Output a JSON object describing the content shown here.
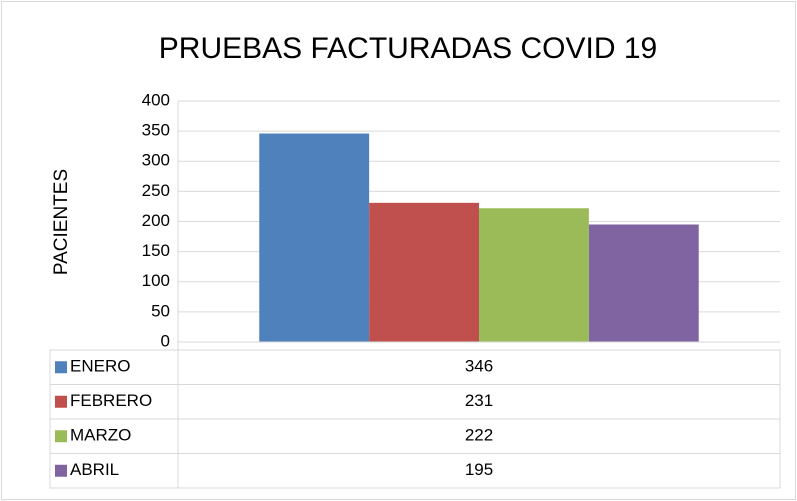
{
  "chart_data": {
    "type": "bar",
    "title": "PRUEBAS FACTURADAS COVID 19",
    "y_label": "PACIENTES",
    "categories": [
      null
    ],
    "series": [
      {
        "name": "ENERO",
        "color": "#4f81bd",
        "values": [
          346
        ]
      },
      {
        "name": "FEBRERO",
        "color": "#c0504d",
        "values": [
          231
        ]
      },
      {
        "name": "MARZO",
        "color": "#9bbb59",
        "values": [
          222
        ]
      },
      {
        "name": "ABRIL",
        "color": "#8064a2",
        "values": [
          195
        ]
      }
    ],
    "ylim": [
      0,
      400
    ],
    "yticks": [
      0,
      50,
      100,
      150,
      200,
      250,
      300,
      350,
      400
    ],
    "grid": true,
    "data_table": true
  }
}
